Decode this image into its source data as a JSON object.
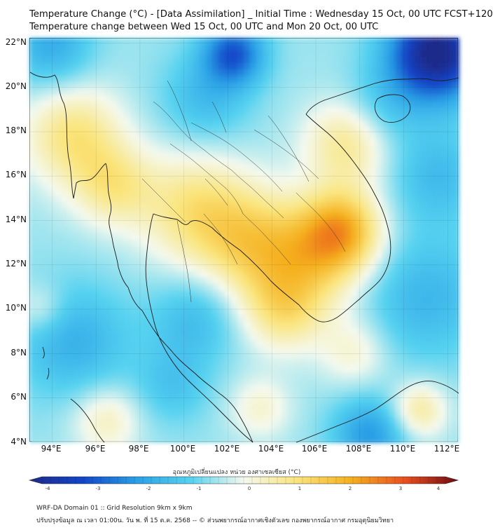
{
  "header": {
    "title_line1": "Temperature Change (°C) - [Data Assimilation] _ Initial Time : Wednesday 15 Oct, 00 UTC FCST+120",
    "title_line2": "Temperature change between Wed 15 Oct, 00 UTC and Mon 20 Oct, 00 UTC"
  },
  "map": {
    "y_ticks": [
      "22°N",
      "20°N",
      "18°N",
      "16°N",
      "14°N",
      "12°N",
      "10°N",
      "8°N",
      "6°N",
      "4°N"
    ],
    "x_ticks": [
      "94°E",
      "96°E",
      "98°E",
      "100°E",
      "102°E",
      "104°E",
      "106°E",
      "108°E",
      "110°E",
      "112°E"
    ],
    "extent": {
      "lon_min": 93,
      "lon_max": 112.5,
      "lat_min": 4,
      "lat_max": 22.2
    },
    "field_hotspots": [
      {
        "lon": 95,
        "lat": 17.8,
        "value": 1.5,
        "spread": 1.6
      },
      {
        "lon": 96.8,
        "lat": 15.5,
        "value": 1.2,
        "spread": 1.3
      },
      {
        "lon": 100.5,
        "lat": 14.5,
        "value": 1.4,
        "spread": 1.8
      },
      {
        "lon": 103,
        "lat": 13,
        "value": 1.4,
        "spread": 1.7
      },
      {
        "lon": 107.2,
        "lat": 13.5,
        "value": 2.3,
        "spread": 1.3
      },
      {
        "lon": 105.5,
        "lat": 12,
        "value": 1.5,
        "spread": 1.8
      },
      {
        "lon": 107.5,
        "lat": 17.5,
        "value": 1.4,
        "spread": 1.4
      },
      {
        "lon": 104.5,
        "lat": 9.8,
        "value": 1.1,
        "spread": 1.3
      },
      {
        "lon": 107.8,
        "lat": 8,
        "value": 0.8,
        "spread": 1.1
      },
      {
        "lon": 110.7,
        "lat": 5.4,
        "value": 1.3,
        "spread": 0.9
      },
      {
        "lon": 96.5,
        "lat": 5,
        "value": 1.0,
        "spread": 1.1
      },
      {
        "lon": 103.5,
        "lat": 5.5,
        "value": 0.8,
        "spread": 1.0
      },
      {
        "lon": 93.5,
        "lat": 10,
        "value": 0.7,
        "spread": 0.8
      },
      {
        "lon": 111,
        "lat": 10.5,
        "value": -1.0,
        "spread": 2.0
      },
      {
        "lon": 111.5,
        "lat": 21.5,
        "value": -3.6,
        "spread": 1.5
      },
      {
        "lon": 102.3,
        "lat": 21.5,
        "value": -2.2,
        "spread": 1.0
      },
      {
        "lon": 94,
        "lat": 21.8,
        "value": -1.2,
        "spread": 1.3
      },
      {
        "lon": 101,
        "lat": 19.5,
        "value": -0.9,
        "spread": 1.4
      },
      {
        "lon": 109,
        "lat": 19,
        "value": -0.7,
        "spread": 1.3
      },
      {
        "lon": 95,
        "lat": 8.5,
        "value": -1.1,
        "spread": 1.8
      },
      {
        "lon": 100.5,
        "lat": 9.5,
        "value": -0.9,
        "spread": 1.4
      },
      {
        "lon": 99.5,
        "lat": 6.5,
        "value": -0.7,
        "spread": 1.2
      },
      {
        "lon": 108.5,
        "lat": 4.3,
        "value": -1.5,
        "spread": 1.2
      },
      {
        "lon": 111.5,
        "lat": 16,
        "value": -0.9,
        "spread": 1.5
      }
    ]
  },
  "colorbar": {
    "label": "อุณหภูมิเปลี่ยนแปลง หน่วย องศาเซลเซียส (°C)",
    "ticks": [
      "-4",
      "-3",
      "-2",
      "-1",
      "0",
      "1",
      "2",
      "3",
      "4"
    ],
    "colors": {
      "-4": "#1e2a8a",
      "-3": "#1246c8",
      "-2": "#2aa0e6",
      "-1": "#56d2f0",
      "0": "#f4f9ee",
      "1": "#fae47a",
      "2": "#f5b01e",
      "3": "#ea5020",
      "4": "#6e0a12"
    }
  },
  "footer": {
    "line1": "WRF-DA Domain 01 :: Grid Resolution 9km x 9km",
    "line2": "ปรับปรุงข้อมูล ณ เวลา 01:00น. วัน พ. ที่ 15 ต.ค. 2568 -- © ส่วนพยากรณ์อากาศเชิงตัวเลข กองพยากรณ์อากาศ กรมอุตุนิยมวิทยา"
  }
}
